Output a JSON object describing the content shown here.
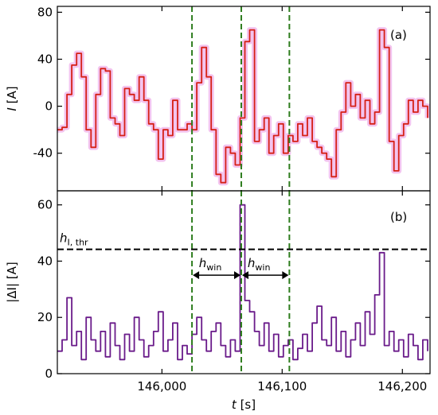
{
  "chart_data": [
    {
      "type": "line",
      "annotation": "(a)",
      "ylabel_var": "I",
      "ylabel_unit": " [A]",
      "xlim": [
        145913,
        146223
      ],
      "xticks": [
        146000,
        146100,
        146200
      ],
      "ylim": [
        -72,
        85
      ],
      "yticks": [
        -40,
        0,
        40,
        80
      ],
      "vlines": [
        146025,
        146066,
        146106
      ],
      "vline_color": "#2e7d1e",
      "x": [
        145913,
        145917,
        145921,
        145925,
        145929,
        145933,
        145937,
        145941,
        145945,
        145949,
        145953,
        145957,
        145961,
        145965,
        145969,
        145973,
        145977,
        145981,
        145985,
        145989,
        145993,
        145997,
        146001,
        146005,
        146009,
        146013,
        146017,
        146021,
        146025,
        146029,
        146033,
        146037,
        146041,
        146045,
        146049,
        146053,
        146057,
        146061,
        146065,
        146069,
        146073,
        146077,
        146081,
        146085,
        146089,
        146093,
        146097,
        146101,
        146105,
        146109,
        146113,
        146117,
        146121,
        146125,
        146129,
        146133,
        146137,
        146141,
        146145,
        146149,
        146153,
        146157,
        146161,
        146165,
        146169,
        146173,
        146177,
        146181,
        146185,
        146189,
        146193,
        146197,
        146201,
        146205,
        146209,
        146213,
        146217,
        146221
      ],
      "series": [
        {
          "color": "#d62016",
          "halo": "#f3c4ef",
          "values": [
            -20,
            -18,
            10,
            35,
            45,
            25,
            -20,
            -35,
            10,
            32,
            30,
            -10,
            -15,
            -25,
            15,
            10,
            5,
            25,
            5,
            -15,
            -20,
            -45,
            -20,
            -25,
            5,
            -20,
            -20,
            -15,
            -20,
            20,
            50,
            25,
            -20,
            -58,
            -65,
            -35,
            -40,
            -50,
            -10,
            55,
            65,
            -30,
            -20,
            -10,
            -40,
            -25,
            -15,
            -40,
            -25,
            -30,
            -15,
            -25,
            -10,
            -30,
            -35,
            -40,
            -45,
            -60,
            -20,
            -5,
            20,
            0,
            10,
            -10,
            5,
            -15,
            -5,
            65,
            50,
            -30,
            -55,
            -25,
            -15,
            5,
            -5,
            5,
            0,
            -10
          ]
        }
      ]
    },
    {
      "type": "line",
      "annotation": "(b)",
      "ylabel": "|ΔI| [A]",
      "xlabel_var": "t",
      "xlabel_unit": " [s]",
      "xlim": [
        145913,
        146223
      ],
      "xticks": [
        {
          "value": 146000,
          "label": "146,000"
        },
        {
          "value": 146100,
          "label": "146,100"
        },
        {
          "value": 146200,
          "label": "146,200"
        }
      ],
      "ylim": [
        0,
        65
      ],
      "yticks": [
        0,
        20,
        40,
        60
      ],
      "vlines": [
        146025,
        146066,
        146106
      ],
      "vline_color": "#2e7d1e",
      "hline": 44.2,
      "hline_label": "h",
      "hline_label_sub": "I, thr",
      "arrow_y": 35,
      "arrow_label": "h",
      "arrow_label_sub": "win",
      "x": [
        145913,
        145917,
        145921,
        145925,
        145929,
        145933,
        145937,
        145941,
        145945,
        145949,
        145953,
        145957,
        145961,
        145965,
        145969,
        145973,
        145977,
        145981,
        145985,
        145989,
        145993,
        145997,
        146001,
        146005,
        146009,
        146013,
        146017,
        146021,
        146025,
        146029,
        146033,
        146037,
        146041,
        146045,
        146049,
        146053,
        146057,
        146061,
        146065,
        146069,
        146073,
        146077,
        146081,
        146085,
        146089,
        146093,
        146097,
        146101,
        146105,
        146109,
        146113,
        146117,
        146121,
        146125,
        146129,
        146133,
        146137,
        146141,
        146145,
        146149,
        146153,
        146157,
        146161,
        146165,
        146169,
        146173,
        146177,
        146181,
        146185,
        146189,
        146193,
        146197,
        146201,
        146205,
        146209,
        146213,
        146217,
        146221
      ],
      "series": [
        {
          "color": "#6a1b8a",
          "values": [
            8,
            12,
            27,
            10,
            15,
            5,
            20,
            12,
            8,
            15,
            6,
            18,
            10,
            5,
            14,
            8,
            20,
            12,
            6,
            10,
            15,
            22,
            8,
            12,
            18,
            5,
            10,
            7,
            14,
            20,
            12,
            8,
            15,
            18,
            10,
            6,
            12,
            8,
            60,
            26,
            22,
            15,
            10,
            18,
            8,
            14,
            6,
            10,
            12,
            5,
            9,
            14,
            8,
            18,
            24,
            12,
            10,
            20,
            8,
            15,
            6,
            12,
            18,
            10,
            22,
            14,
            28,
            43,
            10,
            15,
            8,
            12,
            6,
            14,
            10,
            5,
            12,
            8
          ]
        }
      ]
    }
  ]
}
